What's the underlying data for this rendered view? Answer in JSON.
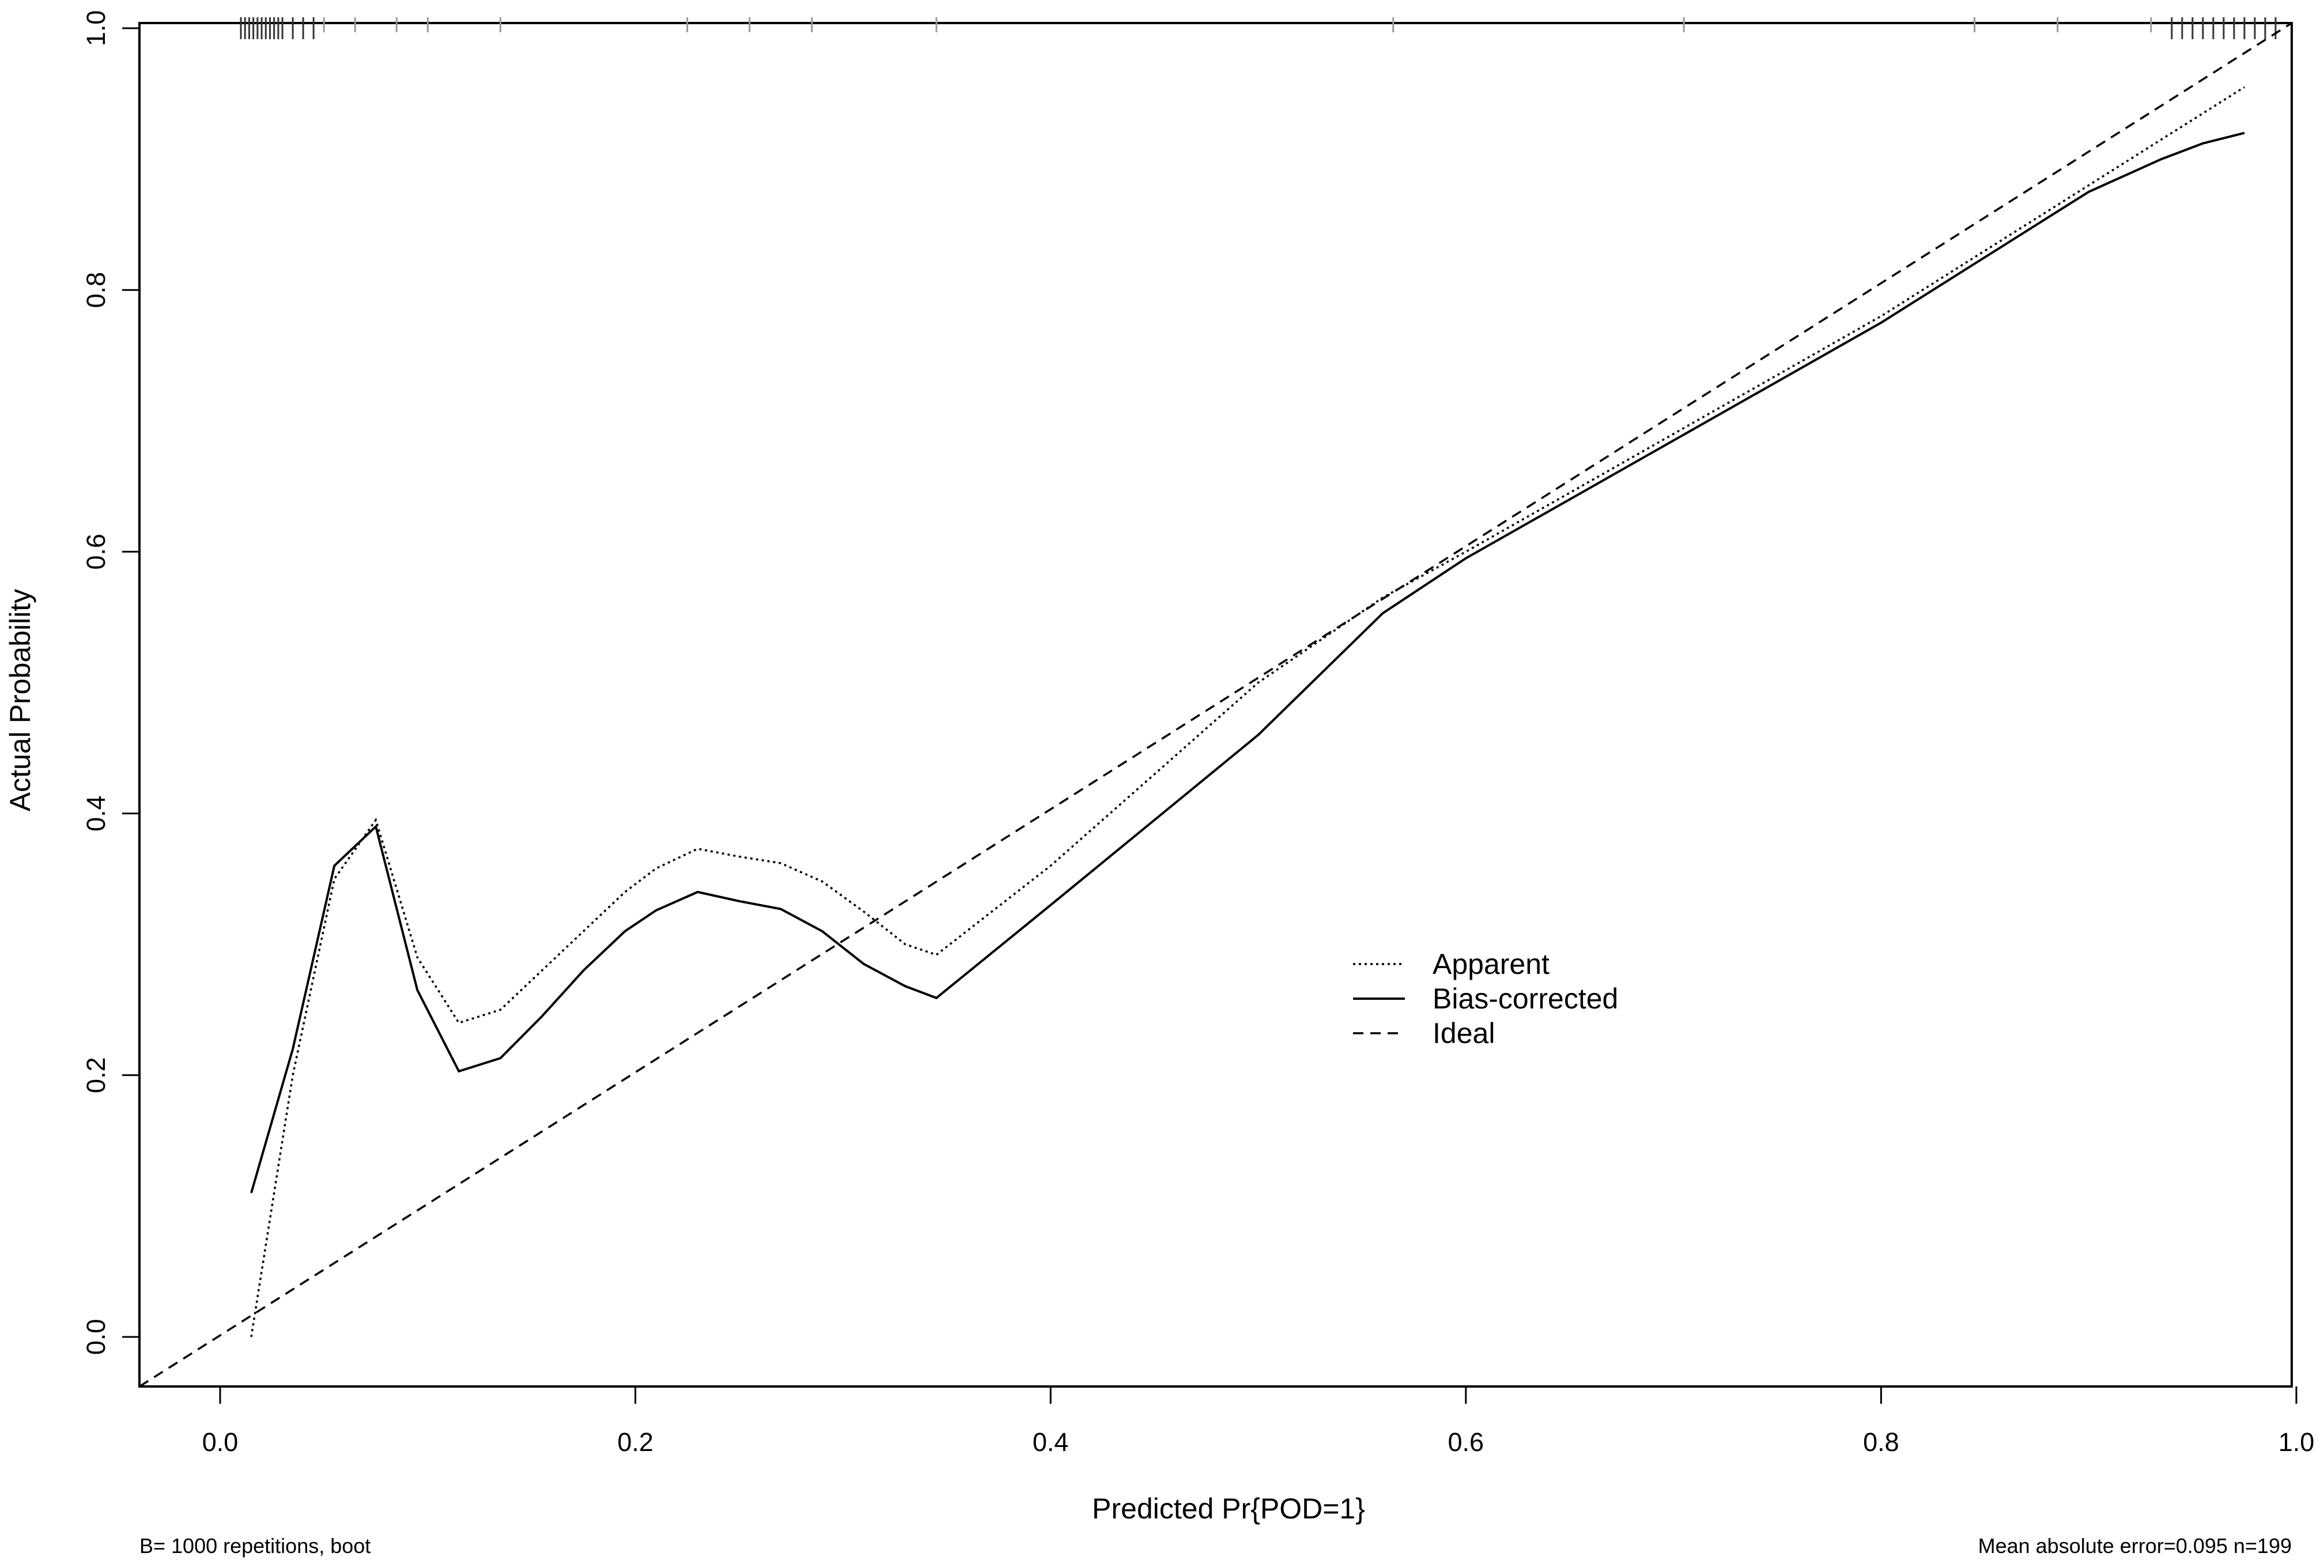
{
  "chart_data": {
    "type": "line",
    "title": "",
    "xlabel": "Predicted Pr{POD=1}",
    "ylabel": "Actual Probability",
    "xlim": [
      -0.04,
      1.01
    ],
    "ylim": [
      -0.04,
      1.0
    ],
    "xticks": [
      "0.0",
      "0.2",
      "0.4",
      "0.6",
      "0.8",
      "1.0"
    ],
    "yticks": [
      "0.0",
      "0.2",
      "0.4",
      "0.6",
      "0.8",
      "1.0"
    ],
    "grid": false,
    "legend_position": "center-right",
    "series": [
      {
        "name": "Apparent",
        "style": "dotted",
        "x": [
          0.015,
          0.035,
          0.055,
          0.075,
          0.095,
          0.115,
          0.135,
          0.155,
          0.175,
          0.195,
          0.21,
          0.23,
          0.25,
          0.27,
          0.29,
          0.31,
          0.33,
          0.345,
          0.4,
          0.45,
          0.5,
          0.56,
          0.6,
          0.65,
          0.7,
          0.75,
          0.8,
          0.85,
          0.9,
          0.95,
          0.975
        ],
        "y": [
          0.0,
          0.2,
          0.35,
          0.395,
          0.29,
          0.24,
          0.25,
          0.28,
          0.31,
          0.34,
          0.358,
          0.373,
          0.367,
          0.362,
          0.348,
          0.325,
          0.3,
          0.292,
          0.36,
          0.43,
          0.5,
          0.565,
          0.6,
          0.645,
          0.69,
          0.735,
          0.78,
          0.83,
          0.88,
          0.93,
          0.955
        ]
      },
      {
        "name": "Bias-corrected",
        "style": "solid",
        "x": [
          0.015,
          0.035,
          0.055,
          0.075,
          0.095,
          0.115,
          0.135,
          0.155,
          0.175,
          0.195,
          0.21,
          0.23,
          0.25,
          0.27,
          0.29,
          0.31,
          0.33,
          0.345,
          0.4,
          0.45,
          0.5,
          0.56,
          0.6,
          0.65,
          0.7,
          0.75,
          0.8,
          0.85,
          0.9,
          0.935,
          0.955,
          0.975
        ],
        "y": [
          0.11,
          0.22,
          0.36,
          0.39,
          0.265,
          0.203,
          0.213,
          0.245,
          0.28,
          0.31,
          0.326,
          0.34,
          0.333,
          0.327,
          0.31,
          0.285,
          0.268,
          0.259,
          0.33,
          0.395,
          0.46,
          0.553,
          0.595,
          0.64,
          0.685,
          0.73,
          0.775,
          0.825,
          0.875,
          0.9,
          0.912,
          0.92
        ]
      },
      {
        "name": "Ideal",
        "style": "dashed",
        "x": [
          -0.04,
          1.01
        ],
        "y": [
          -0.04,
          1.01
        ]
      }
    ],
    "rug_top": [
      0.01,
      0.012,
      0.014,
      0.016,
      0.018,
      0.02,
      0.022,
      0.024,
      0.026,
      0.028,
      0.03,
      0.035,
      0.04,
      0.045,
      0.05,
      0.065,
      0.085,
      0.1,
      0.135,
      0.225,
      0.255,
      0.285,
      0.345,
      0.565,
      0.705,
      0.845,
      0.885,
      0.93,
      0.94,
      0.945,
      0.95,
      0.955,
      0.96,
      0.965,
      0.97,
      0.975,
      0.98,
      0.985,
      0.99
    ]
  },
  "legend": {
    "apparent": "Apparent",
    "bias_corrected": "Bias-corrected",
    "ideal": "Ideal"
  },
  "footnotes": {
    "left": "B= 1000 repetitions, boot",
    "right": "Mean absolute error=0.095 n=199"
  }
}
